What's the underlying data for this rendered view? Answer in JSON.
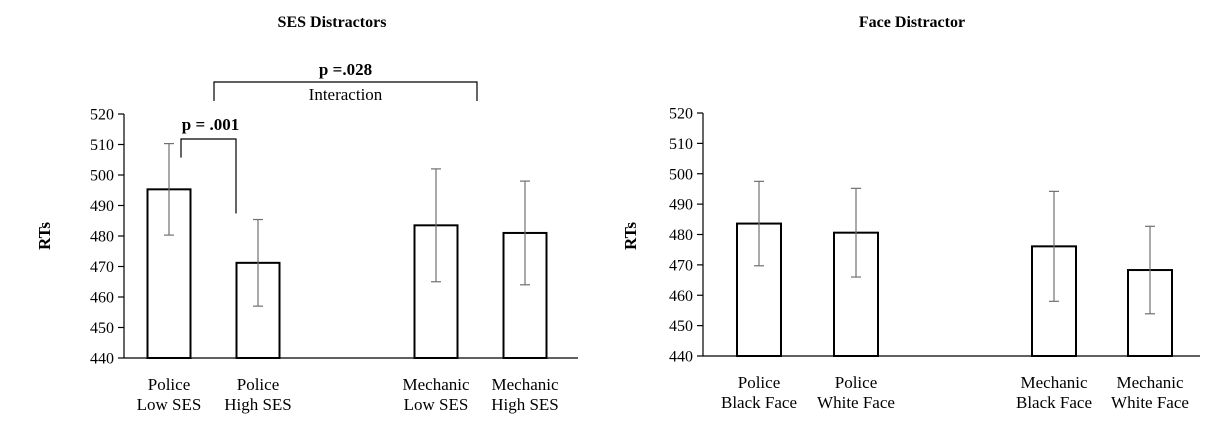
{
  "chart_data": [
    {
      "type": "bar",
      "title": "SES Distractors",
      "ylabel": "RTs",
      "ylim": [
        440,
        520
      ],
      "yticks": [
        440,
        450,
        460,
        470,
        480,
        490,
        500,
        510,
        520
      ],
      "categories": [
        [
          "Police",
          "Low SES"
        ],
        [
          "Police",
          "High SES"
        ],
        [
          "Mechanic",
          "Low SES"
        ],
        [
          "Mechanic",
          "High SES"
        ]
      ],
      "values": [
        495.3,
        471.2,
        483.5,
        481.0
      ],
      "error": [
        15.0,
        14.2,
        18.5,
        17.0
      ],
      "grid": false,
      "annotations": [
        {
          "label": "p = .001",
          "between": [
            0,
            1
          ]
        },
        {
          "label": "p =.028",
          "sublabel": "Interaction",
          "between": [
            1,
            3
          ]
        }
      ]
    },
    {
      "type": "bar",
      "title": "Face Distractor",
      "ylabel": "RTs",
      "ylim": [
        440,
        520
      ],
      "yticks": [
        440,
        450,
        460,
        470,
        480,
        490,
        500,
        510,
        520
      ],
      "categories": [
        [
          "Police",
          "Black Face"
        ],
        [
          "Police",
          "White Face"
        ],
        [
          "Mechanic",
          "Black Face"
        ],
        [
          "Mechanic",
          "White Face"
        ]
      ],
      "values": [
        483.6,
        480.6,
        476.1,
        468.3
      ],
      "error": [
        13.9,
        14.6,
        18.1,
        14.4
      ],
      "grid": false,
      "annotations": []
    }
  ]
}
